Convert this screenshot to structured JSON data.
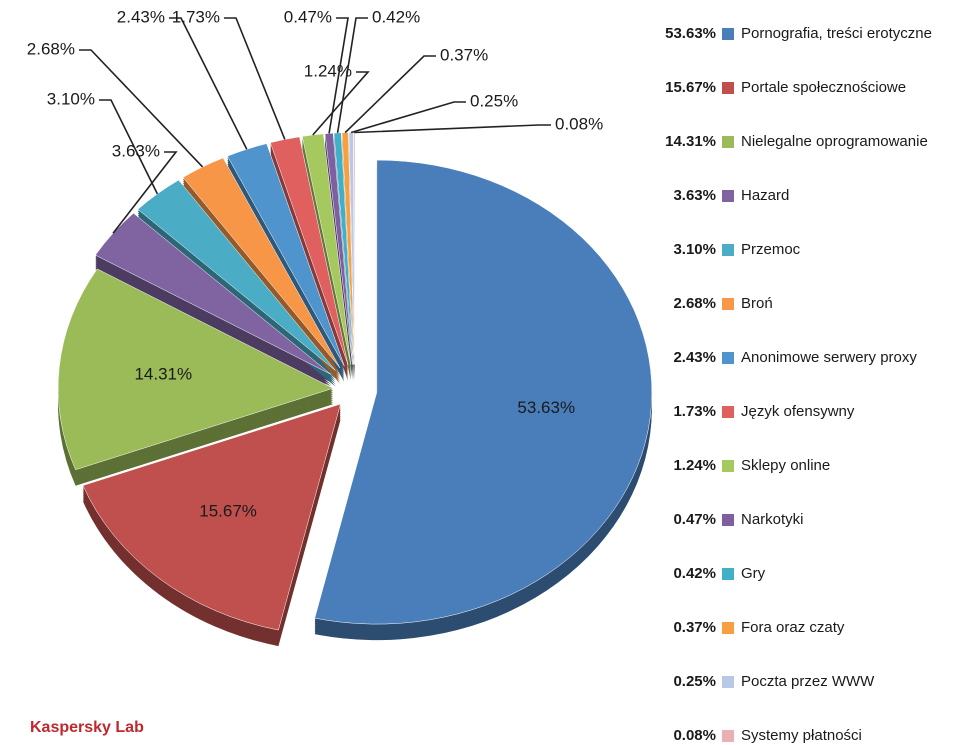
{
  "chart_data": {
    "type": "pie",
    "categories": [
      "Pornografia, treści erotyczne",
      "Portale społecznościowe",
      "Nielegalne oprogramowanie",
      "Hazard",
      "Przemoc",
      "Broń",
      "Anonimowe serwery proxy",
      "Język ofensywny",
      "Sklepy online",
      "Narkotyki",
      "Gry",
      "Fora oraz czaty",
      "Poczta przez WWW",
      "Systemy płatności"
    ],
    "values": [
      53.63,
      15.67,
      14.31,
      3.63,
      3.1,
      2.68,
      2.43,
      1.73,
      1.24,
      0.47,
      0.42,
      0.37,
      0.25,
      0.08
    ],
    "value_labels": [
      "53.63%",
      "15.67%",
      "14.31%",
      "3.63%",
      "3.10%",
      "2.68%",
      "2.43%",
      "1.73%",
      "1.24%",
      "0.47%",
      "0.42%",
      "0.37%",
      "0.25%",
      "0.08%"
    ],
    "colors": [
      "#4a7ebb",
      "#c0504d",
      "#9bbb59",
      "#8064a2",
      "#4bacc6",
      "#f79646",
      "#4f94cd",
      "#e06060",
      "#a5c95f",
      "#7e60a0",
      "#3fb0c8",
      "#f8a040",
      "#b8c8e8",
      "#e8b0b0"
    ],
    "source": "Kaspersky Lab"
  }
}
